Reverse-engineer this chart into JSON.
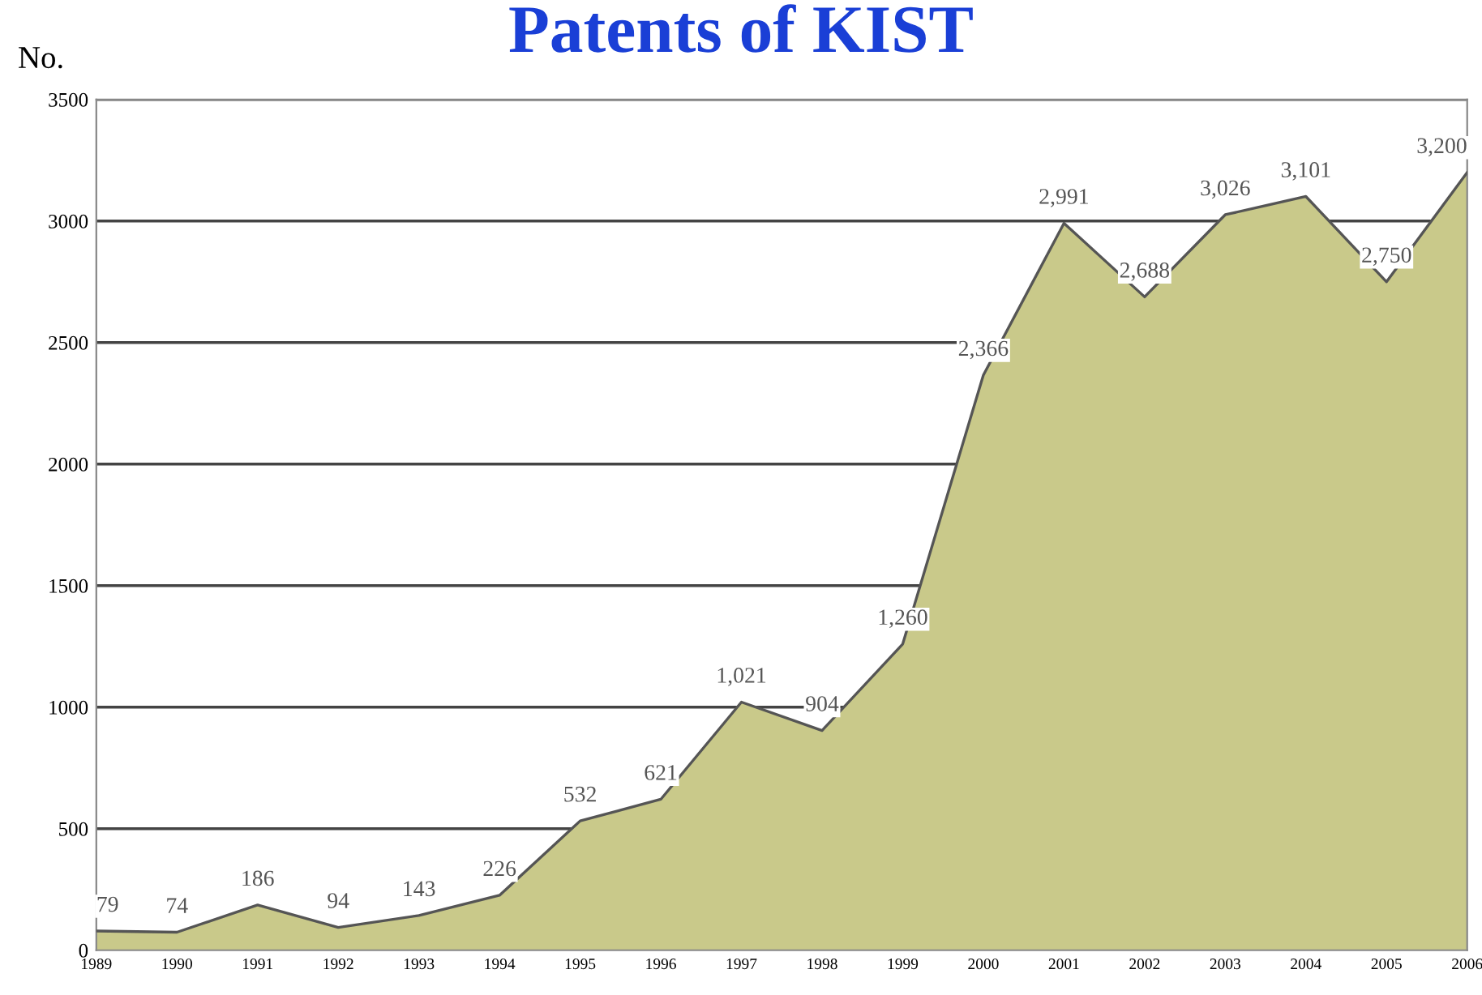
{
  "chart_data": {
    "type": "area",
    "title": "Patents of KIST",
    "ylabel": "No.",
    "categories": [
      "1989",
      "1990",
      "1991",
      "1992",
      "1993",
      "1994",
      "1995",
      "1996",
      "1997",
      "1998",
      "1999",
      "2000",
      "2001",
      "2002",
      "2003",
      "2004",
      "2005",
      "2006"
    ],
    "series": [
      {
        "color": "#c9c98a",
        "values": [
          79,
          74,
          186,
          94,
          143,
          226,
          532,
          621,
          1021,
          904,
          1260,
          2366,
          2991,
          2688,
          3026,
          3101,
          2750,
          3200
        ],
        "value_labels": [
          "79",
          "74",
          "186",
          "94",
          "143",
          "226",
          "532",
          "621",
          "1,021",
          "904",
          "1,260",
          "2,366",
          "2,991",
          "2,688",
          "3,026",
          "3,101",
          "2,750",
          "3,200"
        ]
      }
    ],
    "ylim": [
      0,
      3500
    ],
    "yticks": [
      0,
      500,
      1000,
      1500,
      2000,
      2500,
      3000,
      3500
    ],
    "grid": "y",
    "legend": false
  }
}
